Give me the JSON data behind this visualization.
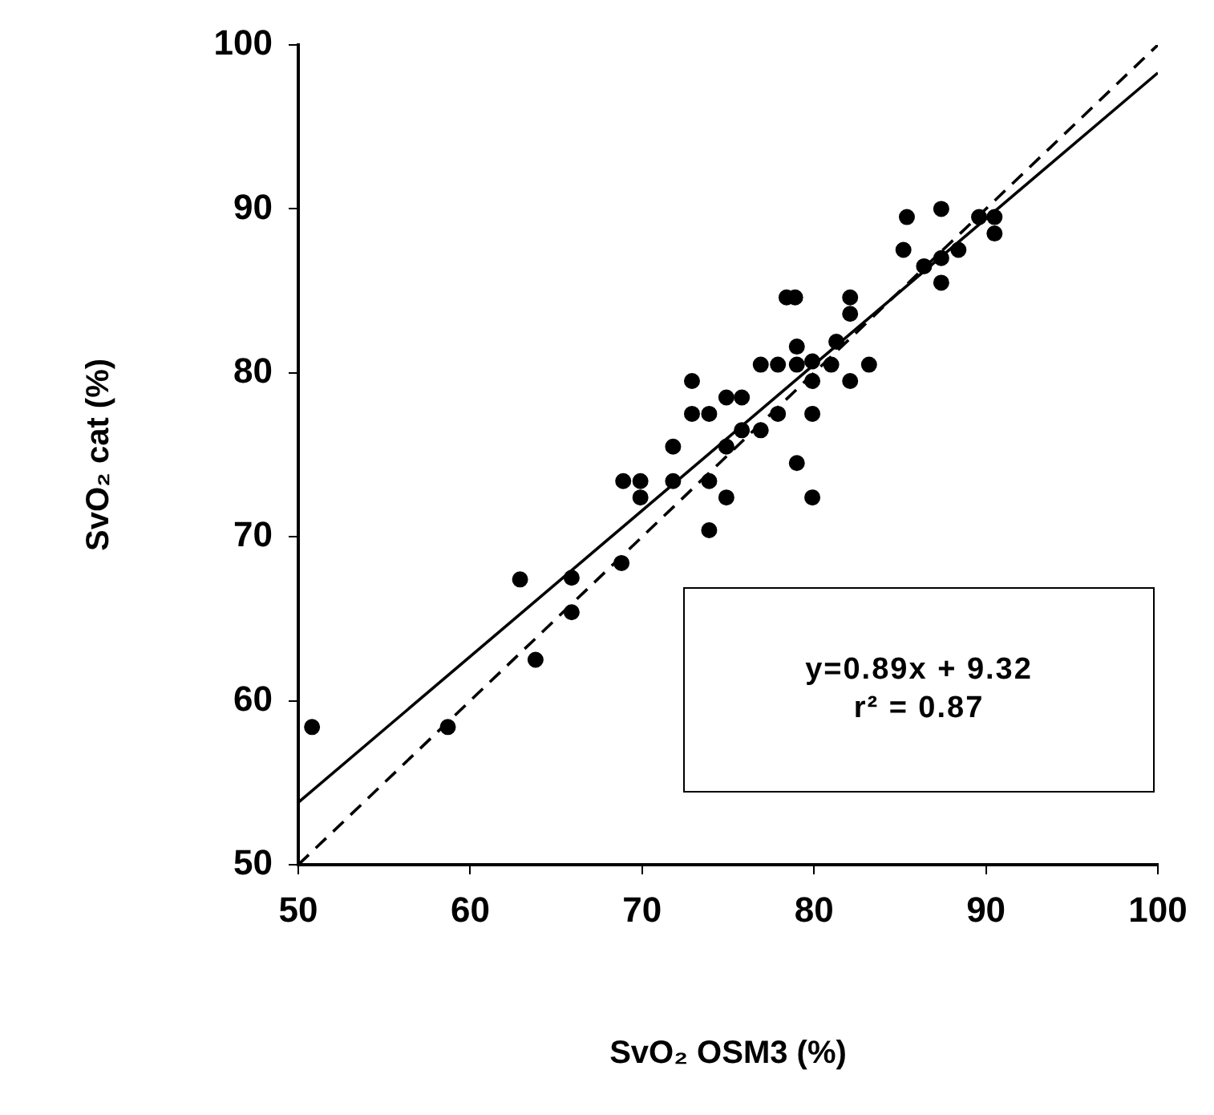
{
  "chart_data": {
    "type": "scatter",
    "xlabel": "SvO₂ OSM3 (%)",
    "ylabel": "SvO₂ cat (%)",
    "xlim": [
      50,
      100
    ],
    "ylim": [
      50,
      100
    ],
    "xticks": [
      50,
      60,
      70,
      80,
      90,
      100
    ],
    "yticks": [
      50,
      60,
      70,
      80,
      90,
      100
    ],
    "grid": false,
    "annotations": [
      "y=0.89x + 9.32",
      "r² = 0.87"
    ],
    "series": [
      {
        "marker": "circle",
        "color": "#000000",
        "x": [
          50.8,
          58.7,
          62.9,
          63.8,
          65.9,
          65.9,
          68.8,
          68.9,
          69.9,
          69.9,
          71.8,
          71.8,
          72.9,
          72.9,
          73.9,
          73.9,
          73.9,
          74.9,
          74.9,
          74.9,
          75.8,
          75.8,
          76.9,
          76.9,
          77.9,
          77.9,
          79.0,
          79.0,
          78.4,
          78.9,
          79.9,
          79.9,
          79.9,
          79.0,
          79.9,
          81.0,
          81.3,
          82.1,
          82.1,
          82.1,
          83.2,
          85.2,
          85.4,
          87.4,
          87.4,
          88.4,
          89.6,
          90.5,
          90.5,
          86.4,
          87.4
        ],
        "values": [
          58.4,
          58.4,
          67.4,
          62.5,
          67.5,
          65.4,
          68.4,
          73.4,
          73.4,
          72.4,
          75.5,
          73.4,
          79.5,
          77.5,
          77.5,
          73.4,
          70.4,
          78.5,
          75.5,
          72.4,
          78.5,
          76.5,
          80.5,
          76.5,
          80.5,
          77.5,
          81.6,
          80.5,
          84.6,
          84.6,
          79.5,
          80.7,
          77.5,
          74.5,
          72.4,
          80.5,
          81.9,
          84.6,
          83.6,
          79.5,
          80.5,
          87.5,
          89.5,
          87.0,
          85.5,
          87.5,
          89.5,
          89.5,
          88.5,
          86.5,
          90.0
        ]
      },
      {
        "type": "line",
        "marker": "none",
        "color": "#000000",
        "line_style": "solid",
        "x": [
          50,
          100
        ],
        "values": [
          53.8,
          98.3
        ]
      },
      {
        "type": "line",
        "marker": "none",
        "color": "#000000",
        "line_style": "dashed",
        "x": [
          50,
          100
        ],
        "values": [
          50,
          100
        ]
      }
    ]
  }
}
